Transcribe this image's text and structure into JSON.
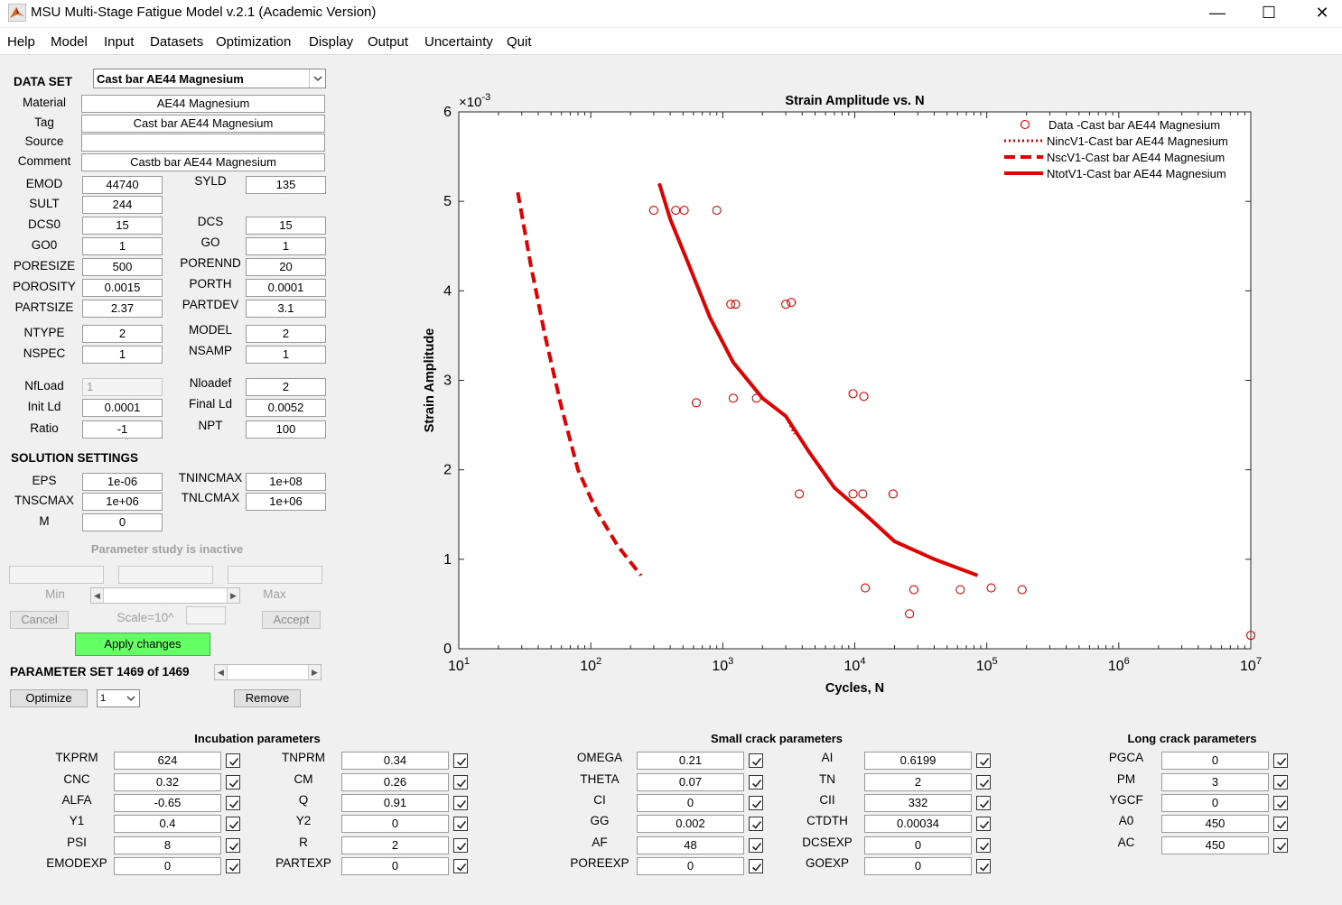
{
  "window": {
    "title": "MSU Multi-Stage Fatigue Model v.2.1 (Academic Version)"
  },
  "menu": [
    "Help",
    "Model",
    "Input",
    "Datasets",
    "Optimization",
    "Display",
    "Output",
    "Uncertainty",
    "Quit"
  ],
  "dataset": {
    "heading": "DATA SET",
    "selected": "Cast bar AE44 Magnesium",
    "material_label": "Material",
    "material": "AE44 Magnesium",
    "tag_label": "Tag",
    "tag": "Cast bar AE44 Magnesium",
    "source_label": "Source",
    "source": "",
    "comment_label": "Comment",
    "comment": "Castb bar AE44 Magnesium",
    "params": [
      {
        "l1": "EMOD",
        "v1": "44740",
        "l2": "SYLD",
        "v2": "135"
      },
      {
        "l1": "SULT",
        "v1": "244"
      },
      {
        "l1": "DCS0",
        "v1": "15",
        "l2": "DCS",
        "v2": "15"
      },
      {
        "l1": "GO0",
        "v1": "1",
        "l2": "GO",
        "v2": "1"
      },
      {
        "l1": "PORESIZE",
        "v1": "500",
        "l2": "PORENND",
        "v2": "20"
      },
      {
        "l1": "POROSITY",
        "v1": "0.0015",
        "l2": "PORTH",
        "v2": "0.0001"
      },
      {
        "l1": "PARTSIZE",
        "v1": "2.37",
        "l2": "PARTDEV",
        "v2": "3.1"
      },
      {
        "l1": "NTYPE",
        "v1": "2",
        "l2": "MODEL",
        "v2": "2"
      },
      {
        "l1": "NSPEC",
        "v1": "1",
        "l2": "NSAMP",
        "v2": "1"
      },
      {
        "l1": "NfLoad",
        "v1": "1",
        "l2": "Nloadef",
        "v2": "2"
      },
      {
        "l1": "Init Ld",
        "v1": "0.0001",
        "l2": "Final Ld",
        "v2": "0.0052"
      },
      {
        "l1": "Ratio",
        "v1": "-1",
        "l2": "NPT",
        "v2": "100"
      }
    ]
  },
  "solution": {
    "heading": "SOLUTION SETTINGS",
    "params": [
      {
        "l1": "EPS",
        "v1": "1e-06",
        "l2": "TNINCMAX",
        "v2": "1e+08"
      },
      {
        "l1": "TNSCMAX",
        "v1": "1e+06",
        "l2": "TNLCMAX",
        "v2": "1e+06"
      },
      {
        "l1": "M",
        "v1": "0"
      }
    ]
  },
  "study": {
    "status": "Parameter study is inactive",
    "min_label": "Min",
    "max_label": "Max",
    "scale_label": "Scale=10^",
    "cancel": "Cancel",
    "accept": "Accept",
    "apply": "Apply changes"
  },
  "paramset": {
    "label": "PARAMETER SET 1469 of 1469",
    "optimize": "Optimize",
    "select": "1",
    "remove": "Remove"
  },
  "groups": [
    {
      "title": "Incubation parameters",
      "cols": [
        [
          {
            "l": "TKPRM",
            "v": "624"
          },
          {
            "l": "CNC",
            "v": "0.32"
          },
          {
            "l": "ALFA",
            "v": "-0.65"
          },
          {
            "l": "Y1",
            "v": "0.4"
          },
          {
            "l": "PSI",
            "v": "8"
          },
          {
            "l": "EMODEXP",
            "v": "0"
          }
        ],
        [
          {
            "l": "TNPRM",
            "v": "0.34"
          },
          {
            "l": "CM",
            "v": "0.26"
          },
          {
            "l": "Q",
            "v": "0.91"
          },
          {
            "l": "Y2",
            "v": "0"
          },
          {
            "l": "R",
            "v": "2"
          },
          {
            "l": "PARTEXP",
            "v": "0"
          }
        ]
      ]
    },
    {
      "title": "Small crack parameters",
      "cols": [
        [
          {
            "l": "OMEGA",
            "v": "0.21"
          },
          {
            "l": "THETA",
            "v": "0.07"
          },
          {
            "l": "CI",
            "v": "0"
          },
          {
            "l": "GG",
            "v": "0.002"
          },
          {
            "l": "AF",
            "v": "48"
          },
          {
            "l": "POREEXP",
            "v": "0"
          }
        ],
        [
          {
            "l": "AI",
            "v": "0.6199"
          },
          {
            "l": "TN",
            "v": "2"
          },
          {
            "l": "CII",
            "v": "332"
          },
          {
            "l": "CTDTH",
            "v": "0.00034"
          },
          {
            "l": "DCSEXP",
            "v": "0"
          },
          {
            "l": "GOEXP",
            "v": "0"
          }
        ]
      ]
    },
    {
      "title": "Long crack parameters",
      "cols": [
        [
          {
            "l": "PGCA",
            "v": "0"
          },
          {
            "l": "PM",
            "v": "3"
          },
          {
            "l": "YGCF",
            "v": "0"
          },
          {
            "l": "A0",
            "v": "450"
          },
          {
            "l": "AC",
            "v": "450"
          }
        ]
      ]
    }
  ],
  "chart_data": {
    "type": "scatter",
    "title": "Strain Amplitude vs. N",
    "xlabel": "Cycles, N",
    "ylabel": "Strain Amplitude",
    "x_scale": "log",
    "y_multiplier_text": "×10",
    "y_multiplier_exp": "-3",
    "xlim": [
      10,
      10000000
    ],
    "ylim": [
      0,
      0.006
    ],
    "x_ticks": [
      {
        "base": "10",
        "exp": "1"
      },
      {
        "base": "10",
        "exp": "2"
      },
      {
        "base": "10",
        "exp": "3"
      },
      {
        "base": "10",
        "exp": "4"
      },
      {
        "base": "10",
        "exp": "5"
      },
      {
        "base": "10",
        "exp": "6"
      },
      {
        "base": "10",
        "exp": "7"
      }
    ],
    "y_ticks": [
      "0",
      "1",
      "2",
      "3",
      "4",
      "5",
      "6"
    ],
    "color": "#e00000",
    "legend_position": "top-right",
    "series": [
      {
        "name": "Data -Cast bar AE44 Magnesium",
        "style": "markers",
        "points": [
          [
            300,
            0.0049
          ],
          [
            440,
            0.0049
          ],
          [
            510,
            0.0049
          ],
          [
            900,
            0.0049
          ],
          [
            630,
            0.00275
          ],
          [
            1150,
            0.00385
          ],
          [
            1250,
            0.00385
          ],
          [
            1200,
            0.0028
          ],
          [
            1800,
            0.0028
          ],
          [
            3000,
            0.00385
          ],
          [
            3300,
            0.00387
          ],
          [
            3800,
            0.00173
          ],
          [
            9700,
            0.00285
          ],
          [
            11700,
            0.00282
          ],
          [
            9700,
            0.00173
          ],
          [
            11500,
            0.00173
          ],
          [
            19500,
            0.00173
          ],
          [
            12000,
            0.00068
          ],
          [
            28000,
            0.00066
          ],
          [
            63000,
            0.00066
          ],
          [
            108000,
            0.00068
          ],
          [
            185000,
            0.00066
          ],
          [
            26000,
            0.00039
          ],
          [
            10000000,
            0.00015
          ]
        ]
      },
      {
        "name": "NincV1-Cast bar AE44 Magnesium",
        "style": "dotted",
        "points": [
          [
            330,
            0.0052
          ],
          [
            400,
            0.0048
          ],
          [
            550,
            0.0043
          ],
          [
            800,
            0.0037
          ],
          [
            1200,
            0.0032
          ],
          [
            2000,
            0.0028
          ],
          [
            3000,
            0.0026
          ],
          [
            3500,
            0.0024
          ]
        ]
      },
      {
        "name": "NscV1-Cast bar AE44 Magnesium",
        "style": "dashed",
        "points": [
          [
            28,
            0.0051
          ],
          [
            35,
            0.0043
          ],
          [
            45,
            0.0035
          ],
          [
            60,
            0.0027
          ],
          [
            80,
            0.002
          ],
          [
            110,
            0.00155
          ],
          [
            160,
            0.00115
          ],
          [
            240,
            0.00082
          ]
        ]
      },
      {
        "name": "NtotV1-Cast bar AE44 Magnesium",
        "style": "solid",
        "points": [
          [
            330,
            0.0052
          ],
          [
            400,
            0.0048
          ],
          [
            550,
            0.0043
          ],
          [
            800,
            0.0037
          ],
          [
            1200,
            0.0032
          ],
          [
            2000,
            0.0028
          ],
          [
            3000,
            0.0026
          ],
          [
            4500,
            0.0022
          ],
          [
            7000,
            0.0018
          ],
          [
            12000,
            0.0015
          ],
          [
            20000,
            0.0012
          ],
          [
            40000,
            0.001
          ],
          [
            85000,
            0.00082
          ]
        ]
      }
    ]
  }
}
